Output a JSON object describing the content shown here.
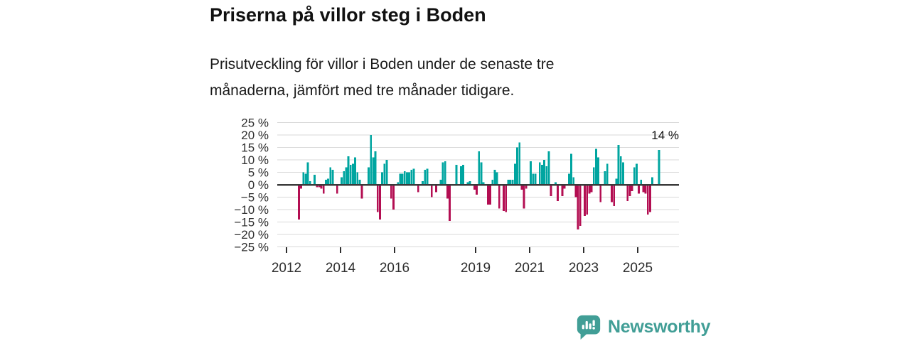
{
  "header": {
    "title": "Priserna på villor steg i Boden",
    "subtitle_line1": "Prisutveckling för villor i Boden under de senaste tre",
    "subtitle_line2": "månaderna, jämfört med tre månader tidigare."
  },
  "chart_data": {
    "type": "bar",
    "title": "Priserna på villor steg i Boden",
    "subtitle": "Prisutveckling för villor i Boden under de senaste tre månaderna, jämfört med tre månader tidigare.",
    "unit": "%",
    "ylim": [
      -25,
      25
    ],
    "yticks": [
      25,
      20,
      15,
      10,
      5,
      0,
      -5,
      -10,
      -15,
      -20,
      -25
    ],
    "ytick_labels": [
      "25 %",
      "20 %",
      "15 %",
      "10 %",
      "5 %",
      "0 %",
      "−5 %",
      "−10 %",
      "−15 %",
      "−20 %",
      "−25 %"
    ],
    "xticks": [
      2012,
      2014,
      2016,
      2019,
      2021,
      2023,
      2025
    ],
    "xtick_labels": [
      "2012",
      "2014",
      "2016",
      "2019",
      "2021",
      "2023",
      "2025"
    ],
    "grid": true,
    "legend": "none",
    "colors": {
      "positive": "#00a5a0",
      "negative": "#b30e52",
      "gridline": "#d8d8d8",
      "zeroline": "#3a3a3a",
      "axis_text": "#2e2e2e"
    },
    "annotation": {
      "label": "14 %",
      "month": "2025-10",
      "value": 14
    },
    "points": [
      [
        "2012-06",
        -14
      ],
      [
        "2012-07",
        -1.5
      ],
      [
        "2012-08",
        5
      ],
      [
        "2012-09",
        4.5
      ],
      [
        "2012-10",
        9
      ],
      [
        "2012-11",
        1.5
      ],
      [
        "2013-01",
        4
      ],
      [
        "2013-02",
        -1
      ],
      [
        "2013-03",
        -1
      ],
      [
        "2013-04",
        -1.5
      ],
      [
        "2013-05",
        -3.5
      ],
      [
        "2013-06",
        2
      ],
      [
        "2013-07",
        2.5
      ],
      [
        "2013-08",
        7
      ],
      [
        "2013-09",
        6
      ],
      [
        "2013-11",
        -3.5
      ],
      [
        "2014-01",
        3
      ],
      [
        "2014-02",
        5.5
      ],
      [
        "2014-03",
        7
      ],
      [
        "2014-04",
        11.5
      ],
      [
        "2014-05",
        8
      ],
      [
        "2014-06",
        8.5
      ],
      [
        "2014-07",
        11
      ],
      [
        "2014-08",
        5
      ],
      [
        "2014-09",
        2
      ],
      [
        "2014-10",
        -5.5
      ],
      [
        "2015-01",
        7
      ],
      [
        "2015-02",
        20
      ],
      [
        "2015-03",
        11
      ],
      [
        "2015-04",
        13.5
      ],
      [
        "2015-05",
        -11
      ],
      [
        "2015-06",
        -14
      ],
      [
        "2015-07",
        5
      ],
      [
        "2015-08",
        8.5
      ],
      [
        "2015-09",
        10
      ],
      [
        "2015-11",
        -5.5
      ],
      [
        "2015-12",
        -10
      ],
      [
        "2016-02",
        1
      ],
      [
        "2016-03",
        4.5
      ],
      [
        "2016-04",
        4.5
      ],
      [
        "2016-05",
        5.5
      ],
      [
        "2016-06",
        5
      ],
      [
        "2016-07",
        5
      ],
      [
        "2016-08",
        6
      ],
      [
        "2016-09",
        6.5
      ],
      [
        "2016-11",
        -3
      ],
      [
        "2017-01",
        1.5
      ],
      [
        "2017-02",
        6
      ],
      [
        "2017-03",
        6.5
      ],
      [
        "2017-05",
        -5
      ],
      [
        "2017-07",
        -3
      ],
      [
        "2017-09",
        2
      ],
      [
        "2017-10",
        9
      ],
      [
        "2017-11",
        9.5
      ],
      [
        "2017-12",
        -5.5
      ],
      [
        "2018-01",
        -14.5
      ],
      [
        "2018-04",
        8
      ],
      [
        "2018-06",
        7.5
      ],
      [
        "2018-07",
        8
      ],
      [
        "2018-09",
        1
      ],
      [
        "2018-10",
        1.5
      ],
      [
        "2018-12",
        -2
      ],
      [
        "2019-01",
        -4
      ],
      [
        "2019-02",
        13.5
      ],
      [
        "2019-03",
        9
      ],
      [
        "2019-04",
        1
      ],
      [
        "2019-06",
        -8
      ],
      [
        "2019-07",
        -8
      ],
      [
        "2019-08",
        2
      ],
      [
        "2019-09",
        6
      ],
      [
        "2019-10",
        5
      ],
      [
        "2019-11",
        -9.5
      ],
      [
        "2020-01",
        -10.5
      ],
      [
        "2020-02",
        -11
      ],
      [
        "2020-03",
        2
      ],
      [
        "2020-04",
        2
      ],
      [
        "2020-05",
        2
      ],
      [
        "2020-06",
        8.5
      ],
      [
        "2020-07",
        15
      ],
      [
        "2020-08",
        17
      ],
      [
        "2020-09",
        -2
      ],
      [
        "2020-10",
        -9.5
      ],
      [
        "2020-11",
        -1.5
      ],
      [
        "2021-01",
        9.5
      ],
      [
        "2021-02",
        4.5
      ],
      [
        "2021-03",
        4.5
      ],
      [
        "2021-05",
        9
      ],
      [
        "2021-06",
        8
      ],
      [
        "2021-07",
        10
      ],
      [
        "2021-08",
        7.5
      ],
      [
        "2021-09",
        13.5
      ],
      [
        "2021-10",
        -4.5
      ],
      [
        "2021-12",
        1
      ],
      [
        "2022-01",
        -6.5
      ],
      [
        "2022-03",
        -4.5
      ],
      [
        "2022-04",
        -1.5
      ],
      [
        "2022-06",
        4.5
      ],
      [
        "2022-07",
        12.5
      ],
      [
        "2022-08",
        3
      ],
      [
        "2022-09",
        -5
      ],
      [
        "2022-10",
        -18
      ],
      [
        "2022-11",
        -16.5
      ],
      [
        "2023-01",
        -12.5
      ],
      [
        "2023-02",
        -12
      ],
      [
        "2023-03",
        -3.5
      ],
      [
        "2023-04",
        -3
      ],
      [
        "2023-05",
        7
      ],
      [
        "2023-06",
        14.5
      ],
      [
        "2023-07",
        11
      ],
      [
        "2023-08",
        -7
      ],
      [
        "2023-10",
        5.5
      ],
      [
        "2023-11",
        8.5
      ],
      [
        "2024-01",
        -7
      ],
      [
        "2024-02",
        -8.5
      ],
      [
        "2024-03",
        2.5
      ],
      [
        "2024-04",
        16
      ],
      [
        "2024-05",
        11.5
      ],
      [
        "2024-06",
        9
      ],
      [
        "2024-08",
        -6.5
      ],
      [
        "2024-09",
        -4.5
      ],
      [
        "2024-10",
        -2.5
      ],
      [
        "2024-11",
        7
      ],
      [
        "2024-12",
        8.5
      ],
      [
        "2025-01",
        -3.5
      ],
      [
        "2025-02",
        2
      ],
      [
        "2025-03",
        -3
      ],
      [
        "2025-04",
        -3.5
      ],
      [
        "2025-05",
        -12
      ],
      [
        "2025-06",
        -11
      ],
      [
        "2025-07",
        3
      ],
      [
        "2025-10",
        14
      ]
    ]
  },
  "footer": {
    "brand": "Newsworthy",
    "brand_color": "#419e96",
    "icon": "bar-chart-speech-bubble"
  }
}
